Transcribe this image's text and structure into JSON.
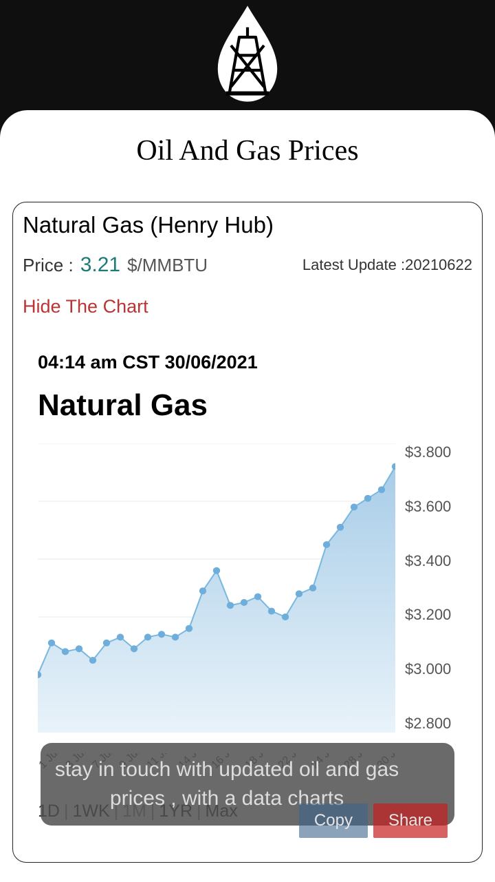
{
  "page_title": "Oil And Gas Prices",
  "card": {
    "title": "Natural Gas (Henry Hub)",
    "price_label": "Price :",
    "price_value": "3.21",
    "price_unit": "$/MMBTU",
    "update_label": "Latest Update :",
    "update_value": "20210622",
    "hide_chart_label": "Hide The Chart"
  },
  "chart": {
    "timestamp": "04:14 am CST 30/06/2021",
    "title": "Natural Gas",
    "type": "area",
    "line_color": "#7ab8de",
    "fill_top": "#a8cde8",
    "fill_bottom": "#e9f3fa",
    "marker_color": "#6faedb",
    "marker_radius": 5,
    "line_width": 2,
    "grid_color": "#e8e8e8",
    "background": "#ffffff",
    "ylim": [
      2.8,
      3.8
    ],
    "ytick_step": 0.2,
    "yticks": [
      "$3.800",
      "$3.600",
      "$3.400",
      "$3.200",
      "$3.000",
      "$2.800"
    ],
    "xticks": [
      "1 Jun",
      "3 Jun",
      "7 Jun",
      "9 Jun",
      "11 Jun",
      "14 Jun",
      "16 Jun",
      "18 Jun",
      "22 Jun",
      "24 Jun",
      "28 Jun",
      "30 Jun"
    ],
    "values": [
      3.0,
      3.11,
      3.08,
      3.09,
      3.05,
      3.11,
      3.13,
      3.09,
      3.13,
      3.14,
      3.13,
      3.16,
      3.29,
      3.36,
      3.24,
      3.25,
      3.27,
      3.22,
      3.2,
      3.28,
      3.3,
      3.45,
      3.51,
      3.58,
      3.61,
      3.64,
      3.72
    ],
    "ranges": [
      "1D",
      "1WK",
      "1M",
      "1YR",
      "Max"
    ],
    "active_range": "1M"
  },
  "toast": {
    "text": "stay in touch with updated oil and gas prices , with a data charts",
    "copy": "Copy",
    "share": "Share"
  }
}
